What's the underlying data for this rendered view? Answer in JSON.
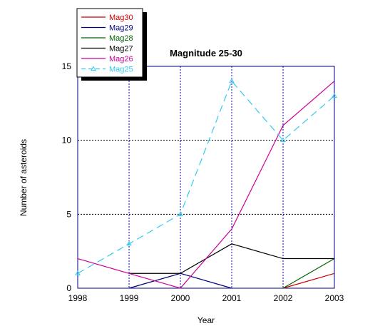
{
  "chart_data": {
    "type": "line",
    "title": "Magnitude 25-30",
    "xlabel": "Year",
    "ylabel": "Number of asteroids",
    "x": [
      1998,
      1999,
      2000,
      2001,
      2002,
      2003
    ],
    "xlim": [
      1998,
      2003
    ],
    "ylim": [
      0,
      15
    ],
    "x_ticks": [
      "1998",
      "1999",
      "2000",
      "2001",
      "2002",
      "2003"
    ],
    "y_ticks": [
      "0",
      "5",
      "10",
      "15"
    ],
    "grid": true,
    "legend_position": "top-left",
    "series": [
      {
        "name": "Mag30",
        "color": "#cc0000",
        "dash": "solid",
        "marker": "none",
        "points": [
          [
            2002,
            0
          ],
          [
            2003,
            1
          ]
        ]
      },
      {
        "name": "Mag29",
        "color": "#000080",
        "dash": "solid",
        "marker": "none",
        "points": [
          [
            1999,
            0
          ],
          [
            2000,
            1
          ],
          [
            2001,
            0
          ]
        ]
      },
      {
        "name": "Mag28",
        "color": "#006400",
        "dash": "solid",
        "marker": "none",
        "points": [
          [
            2002,
            0
          ],
          [
            2003,
            2
          ]
        ]
      },
      {
        "name": "Mag27",
        "color": "#000000",
        "dash": "solid",
        "marker": "none",
        "points": [
          [
            1999,
            1
          ],
          [
            2000,
            1
          ],
          [
            2001,
            3
          ],
          [
            2002,
            2
          ],
          [
            2003,
            2
          ]
        ]
      },
      {
        "name": "Mag26",
        "color": "#cc0099",
        "dash": "solid",
        "marker": "none",
        "points": [
          [
            1998,
            2
          ],
          [
            1999,
            1
          ],
          [
            2000,
            0
          ],
          [
            2001,
            4
          ],
          [
            2002,
            11
          ],
          [
            2003,
            14
          ]
        ]
      },
      {
        "name": "Mag25",
        "color": "#33ccee",
        "dash": "dashed",
        "marker": "triangle",
        "points": [
          [
            1998,
            1
          ],
          [
            1999,
            3
          ],
          [
            2000,
            5
          ],
          [
            2001,
            14
          ],
          [
            2002,
            10
          ],
          [
            2003,
            13
          ]
        ]
      }
    ]
  }
}
